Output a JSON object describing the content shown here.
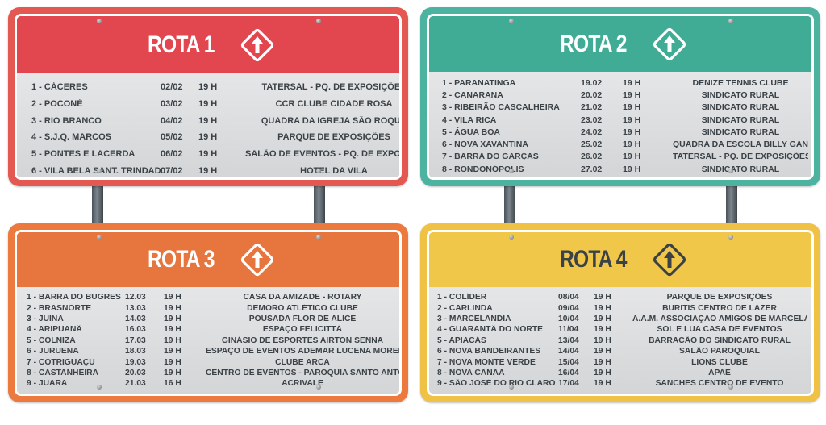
{
  "signs": [
    {
      "title": "ROTA 1",
      "colors": {
        "frame": "#e35850",
        "header": "#e24750",
        "title_text": "#ffffff"
      },
      "icon": "arrow-up-sign-icon",
      "rows": [
        {
          "city": "1 - CÁCERES",
          "date": "02/02",
          "time": "19 H",
          "place": "TATERSAL - PQ. DE EXPOSIÇÕES"
        },
        {
          "city": "2 - POCONÉ",
          "date": "03/02",
          "time": "19 H",
          "place": "CCR CLUBE CIDADE ROSA"
        },
        {
          "city": "3 - RIO BRANCO",
          "date": "04/02",
          "time": "19 H",
          "place": "QUADRA DA IGREJA SÃO ROQUE"
        },
        {
          "city": "4 - S.J.Q. MARCOS",
          "date": "05/02",
          "time": "19 H",
          "place": "PARQUE DE EXPOSIÇÕES"
        },
        {
          "city": "5 - PONTES E LACERDA",
          "date": "06/02",
          "time": "19 H",
          "place": "SALÃO DE EVENTOS - PQ. DE EXPOSIÇÕES"
        },
        {
          "city": "6 - VILA BELA SANT. TRINDADE",
          "date": "07/02",
          "time": "19 H",
          "place": "HOTEL DA VILA"
        }
      ]
    },
    {
      "title": "ROTA 2",
      "colors": {
        "frame": "#4bb39f",
        "header": "#40ac96",
        "title_text": "#ffffff"
      },
      "icon": "arrow-up-sign-icon",
      "rows": [
        {
          "city": "1 - PARANATINGA",
          "date": "19.02",
          "time": "19 H",
          "place": "DENIZE TENNIS CLUBE"
        },
        {
          "city": "2 - CANARANA",
          "date": "20.02",
          "time": "19 H",
          "place": "SINDICATO RURAL"
        },
        {
          "city": "3 - RIBEIRÃO CASCALHEIRA",
          "date": "21.02",
          "time": "19 H",
          "place": "SINDICATO RURAL"
        },
        {
          "city": "4 - VILA RICA",
          "date": "23.02",
          "time": "19 H",
          "place": "SINDICATO RURAL"
        },
        {
          "city": "5 - ÁGUA BOA",
          "date": "24.02",
          "time": "19 H",
          "place": "SINDICATO RURAL"
        },
        {
          "city": "6 - NOVA XAVANTINA",
          "date": "25.02",
          "time": "19 H",
          "place": "QUADRA DA ESCOLA BILLY GANCHO"
        },
        {
          "city": "7 - BARRA DO GARÇAS",
          "date": "26.02",
          "time": "19 H",
          "place": "TATERSAL - PQ. DE EXPOSIÇÕES"
        },
        {
          "city": "8 - RONDONÓPOLIS",
          "date": "27.02",
          "time": "19 H",
          "place": "SINDICATO RURAL"
        }
      ]
    },
    {
      "title": "ROTA 3",
      "colors": {
        "frame": "#ec7a3e",
        "header": "#e7753e",
        "title_text": "#ffffff"
      },
      "icon": "arrow-up-sign-icon",
      "rows": [
        {
          "city": "1 - BARRA DO BUGRES",
          "date": "12.03",
          "time": "19 H",
          "place": "CASA DA AMIZADE - ROTARY"
        },
        {
          "city": "2 - BRASNORTE",
          "date": "13.03",
          "time": "19 H",
          "place": "DEMORO ATLÉTICO CLUBE"
        },
        {
          "city": "3 - JUÍNA",
          "date": "14.03",
          "time": "19 H",
          "place": "POUSADA FLOR DE ALICE"
        },
        {
          "city": "4 - ARIPUANÃ",
          "date": "16.03",
          "time": "19 H",
          "place": "ESPAÇO FELICITTÁ"
        },
        {
          "city": "5 - COLNIZA",
          "date": "17.03",
          "time": "19 H",
          "place": "GINÁSIO DE ESPORTES AIRTON SENNA"
        },
        {
          "city": "6 - JURUENA",
          "date": "18.03",
          "time": "19 H",
          "place": "ESPAÇO DE EVENTOS ADEMAR LUCENA MOREIRA"
        },
        {
          "city": "7 - COTRIGUAÇU",
          "date": "19.03",
          "time": "19 H",
          "place": "CLUBE ARCA"
        },
        {
          "city": "8 - CASTANHEIRA",
          "date": "20.03",
          "time": "19 H",
          "place": "CENTRO DE EVENTOS - PARÓQUIA SANTO ANTÔNIO"
        },
        {
          "city": "9 - JUARA",
          "date": "21.03",
          "time": "16 H",
          "place": "ACRIVALE"
        }
      ]
    },
    {
      "title": "ROTA 4",
      "colors": {
        "frame": "#efc144",
        "header": "#f1c749",
        "title_text": "#3b4247"
      },
      "icon": "arrow-up-sign-icon",
      "rows": [
        {
          "city": "1 - COLÍDER",
          "date": "08/04",
          "time": "19 H",
          "place": "PARQUE DE EXPOSIÇÕES"
        },
        {
          "city": "2 - CARLINDA",
          "date": "09/04",
          "time": "19 H",
          "place": "BURITIS CENTRO DE LAZER"
        },
        {
          "city": "3 - MARCELÂNDIA",
          "date": "10/04",
          "time": "19 H",
          "place": "A.A.M. ASSOCIAÇÃO AMIGOS DE MARCELÂNDIA"
        },
        {
          "city": "4 - GUARANTÃ DO NORTE",
          "date": "11/04",
          "time": "19 H",
          "place": "SOL E LUA CASA DE EVENTOS"
        },
        {
          "city": "5 - APIACÁS",
          "date": "13/04",
          "time": "19 H",
          "place": "BARRACÃO DO SINDICATO RURAL"
        },
        {
          "city": "6 - NOVA BANDEIRANTES",
          "date": "14/04",
          "time": "19 H",
          "place": "SALÃO PAROQUIAL"
        },
        {
          "city": "7 - NOVA MONTE VERDE",
          "date": "15/04",
          "time": "19 H",
          "place": "LIONS CLUBE"
        },
        {
          "city": "8 - NOVA CANAÃ",
          "date": "16/04",
          "time": "19 H",
          "place": "APAE"
        },
        {
          "city": "9 - SÃO JOSÉ DO RIO CLARO",
          "date": "17/04",
          "time": "19 H",
          "place": "SANCHES CENTRO DE EVENTO"
        }
      ]
    }
  ]
}
